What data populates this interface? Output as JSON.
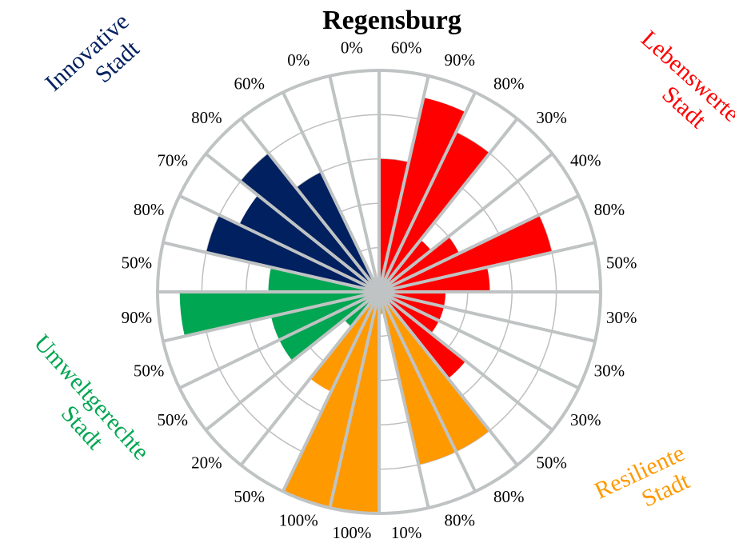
{
  "chart_data": {
    "type": "polar-bar",
    "title": "Regensburg",
    "categories": [
      null,
      null,
      null,
      null,
      null,
      null,
      null,
      null,
      null,
      null,
      null,
      null,
      null,
      null,
      null,
      null,
      null,
      null,
      null,
      null,
      null,
      null,
      null,
      null,
      null,
      null,
      null,
      null
    ],
    "values": [
      60,
      90,
      80,
      30,
      40,
      80,
      50,
      30,
      30,
      30,
      50,
      80,
      80,
      10,
      100,
      100,
      50,
      20,
      50,
      50,
      90,
      50,
      80,
      70,
      80,
      60,
      0,
      0
    ],
    "value_labels": [
      "60%",
      "90%",
      "80%",
      "30%",
      "40%",
      "80%",
      "50%",
      "30%",
      "30%",
      "30%",
      "50%",
      "80%",
      "80%",
      "10%",
      "100%",
      "100%",
      "50%",
      "20%",
      "50%",
      "50%",
      "90%",
      "50%",
      "80%",
      "70%",
      "80%",
      "60%",
      "0%",
      "0%"
    ],
    "colors": [
      "#ff0000",
      "#ff0000",
      "#ff0000",
      "#ff0000",
      "#ff0000",
      "#ff0000",
      "#ff0000",
      "#ff0000",
      "#ff0000",
      "#ff0000",
      "#ff0000",
      "#ff9900",
      "#ff9900",
      "#ff9900",
      "#ff9900",
      "#ff9900",
      "#ff9900",
      "#00a651",
      "#00a651",
      "#00a651",
      "#00a651",
      "#00a651",
      "#002060",
      "#002060",
      "#002060",
      "#002060",
      "#002060",
      "#002060"
    ],
    "rlim": [
      0,
      100
    ],
    "rticks": [
      20,
      40,
      60,
      80,
      100
    ],
    "annotations": [
      {
        "lines": [
          "Lebenswerte",
          "Stadt"
        ],
        "color": "#ff0000"
      },
      {
        "lines": [
          "Resiliente",
          "Stadt"
        ],
        "color": "#ff9900"
      },
      {
        "lines": [
          "Umweltgerechte",
          "Stadt"
        ],
        "color": "#00a651"
      },
      {
        "lines": [
          "Innovative",
          "Stadt"
        ],
        "color": "#002060"
      }
    ]
  }
}
